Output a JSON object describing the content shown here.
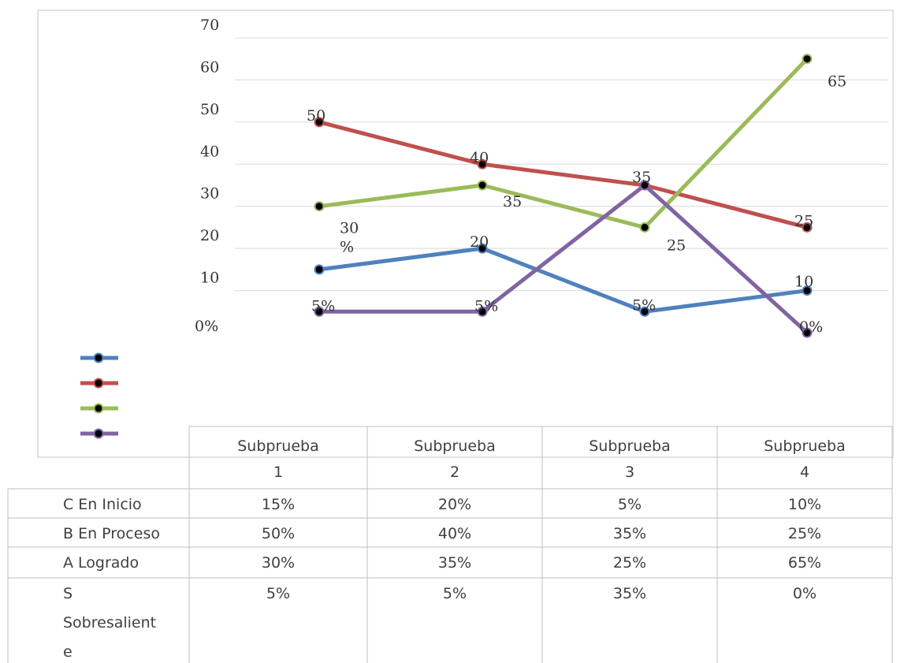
{
  "chart_data": {
    "type": "line",
    "categories": [
      "Subprueba 1",
      "Subprueba 2",
      "Subprueba 3",
      "Subprueba 4"
    ],
    "category_lines": [
      [
        "Subprueba",
        "1"
      ],
      [
        "Subprueba",
        "2"
      ],
      [
        "Subprueba",
        "3"
      ],
      [
        "Subprueba",
        "4"
      ]
    ],
    "ylim": [
      0,
      70
    ],
    "yticks": [
      "0%",
      "10",
      "20",
      "30",
      "40",
      "50",
      "60",
      "70"
    ],
    "grid": true,
    "legend_placement": "left, beside data table",
    "series": [
      {
        "name": "C En Inicio",
        "name_lines": [
          "C En Inicio"
        ],
        "color": "#4f81bd",
        "values": [
          15,
          20,
          5,
          10
        ],
        "table_values": [
          "15%",
          "20%",
          "5%",
          "10%"
        ],
        "point_labels": [
          "",
          "20",
          "5%",
          "10"
        ]
      },
      {
        "name": "B En Proceso",
        "name_lines": [
          "B En Proceso"
        ],
        "color": "#c0504d",
        "values": [
          50,
          40,
          35,
          25
        ],
        "table_values": [
          "50%",
          "40%",
          "35%",
          "25%"
        ],
        "point_labels": [
          "50",
          "40",
          "35",
          "25"
        ]
      },
      {
        "name": "A Logrado",
        "name_lines": [
          "A Logrado"
        ],
        "color": "#9bbb59",
        "values": [
          30,
          35,
          25,
          65
        ],
        "table_values": [
          "30%",
          "35%",
          "25%",
          "65%"
        ],
        "point_labels": [
          "30\n%",
          "35",
          "25",
          "65"
        ]
      },
      {
        "name": "S Sobresaliente",
        "name_lines": [
          "S",
          "Sobresalient",
          "e"
        ],
        "color": "#8064a2",
        "values": [
          5,
          5,
          35,
          0
        ],
        "table_values": [
          "5%",
          "5%",
          "35%",
          "0%"
        ],
        "point_labels": [
          "5%",
          "5%",
          "",
          "0%"
        ]
      }
    ]
  }
}
